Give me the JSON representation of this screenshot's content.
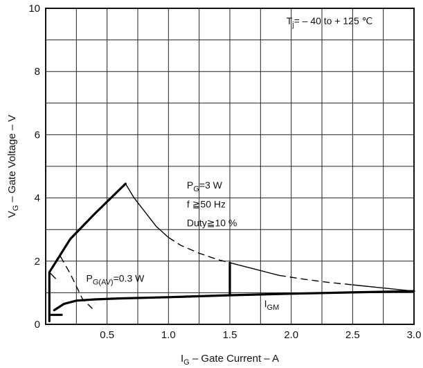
{
  "chart_data": {
    "type": "line",
    "title": "",
    "xlabel": {
      "main": "I",
      "sub": "G",
      "rest": " – Gate Current – A"
    },
    "ylabel": {
      "main": "V",
      "sub": "G",
      "rest": " – Gate Voltage – V"
    },
    "xlim": [
      0,
      3.0
    ],
    "ylim": [
      0,
      10
    ],
    "x_grid_step": 0.25,
    "y_grid_step": 1,
    "grid": true,
    "x_ticks": [
      {
        "value": 0.5,
        "label": "0.5"
      },
      {
        "value": 1.0,
        "label": "1.0"
      },
      {
        "value": 1.5,
        "label": "1.5"
      },
      {
        "value": 2.0,
        "label": "2.0"
      },
      {
        "value": 2.5,
        "label": "2.5"
      },
      {
        "value": 3.0,
        "label": "3.0"
      }
    ],
    "y_ticks": [
      {
        "value": 0,
        "label": "0"
      },
      {
        "value": 2,
        "label": "2"
      },
      {
        "value": 4,
        "label": "4"
      },
      {
        "value": 6,
        "label": "6"
      },
      {
        "value": 8,
        "label": "8"
      },
      {
        "value": 10,
        "label": "10"
      }
    ],
    "curves": [
      {
        "style": "thick",
        "points": [
          [
            0.03,
            0.1
          ],
          [
            0.03,
            1.65
          ],
          [
            0.2,
            2.7
          ],
          [
            0.4,
            3.5
          ],
          [
            0.65,
            4.45
          ]
        ]
      },
      {
        "style": "thin",
        "points": [
          [
            0.65,
            4.45
          ],
          [
            0.72,
            4.0
          ],
          [
            0.8,
            3.6
          ],
          [
            0.9,
            3.1
          ],
          [
            1.0,
            2.75
          ]
        ]
      },
      {
        "style": "dashed",
        "points": [
          [
            1.0,
            2.75
          ],
          [
            1.1,
            2.5
          ],
          [
            1.25,
            2.25
          ],
          [
            1.4,
            2.05
          ],
          [
            1.5,
            1.95
          ]
        ]
      },
      {
        "style": "thin",
        "points": [
          [
            1.5,
            1.95
          ],
          [
            1.7,
            1.75
          ],
          [
            1.9,
            1.55
          ]
        ]
      },
      {
        "style": "dashed",
        "points": [
          [
            1.9,
            1.55
          ],
          [
            2.1,
            1.43
          ],
          [
            2.3,
            1.33
          ],
          [
            2.5,
            1.25
          ]
        ]
      },
      {
        "style": "thin",
        "points": [
          [
            2.5,
            1.25
          ],
          [
            2.75,
            1.15
          ],
          [
            3.0,
            1.05
          ]
        ]
      },
      {
        "style": "thick",
        "points": [
          [
            0.07,
            0.45
          ],
          [
            0.15,
            0.65
          ],
          [
            0.25,
            0.75
          ],
          [
            0.4,
            0.79
          ],
          [
            0.6,
            0.82
          ],
          [
            1.0,
            0.86
          ],
          [
            1.5,
            0.92
          ],
          [
            2.0,
            0.97
          ],
          [
            2.5,
            1.01
          ],
          [
            3.0,
            1.05
          ]
        ]
      },
      {
        "style": "thick",
        "points": [
          [
            1.5,
            0.92
          ],
          [
            1.5,
            1.95
          ]
        ]
      },
      {
        "style": "thin",
        "points": [
          [
            0.03,
            1.65
          ],
          [
            0.08,
            1.45
          ]
        ]
      },
      {
        "style": "dashed",
        "points": [
          [
            0.12,
            2.15
          ],
          [
            0.2,
            1.6
          ],
          [
            0.3,
            0.8
          ],
          [
            0.38,
            0.5
          ]
        ]
      },
      {
        "style": "thick",
        "points": [
          [
            0.03,
            0.3
          ],
          [
            0.13,
            0.3
          ]
        ]
      }
    ],
    "annotations": [
      {
        "name": "tj-annotation",
        "parts": [
          {
            "t": "T"
          },
          {
            "t": "j",
            "sub": true
          },
          {
            "t": "= – 40 to + 125 ℃"
          }
        ],
        "x": 1.96,
        "y": 9.5
      },
      {
        "name": "pg-annotation",
        "parts": [
          {
            "t": "P"
          },
          {
            "t": "G",
            "sub": true
          },
          {
            "t": "=3 W"
          }
        ],
        "x": 1.15,
        "y": 4.3
      },
      {
        "name": "freq-annotation",
        "parts": [
          {
            "t": "f ≧50 Hz"
          }
        ],
        "x": 1.15,
        "y": 3.7
      },
      {
        "name": "duty-annotation",
        "parts": [
          {
            "t": "Duty≧10 %"
          }
        ],
        "x": 1.15,
        "y": 3.1
      },
      {
        "name": "pgav-annotation",
        "parts": [
          {
            "t": "P"
          },
          {
            "t": "G(AV)",
            "sub": true
          },
          {
            "t": "=0.3 W"
          }
        ],
        "x": 0.33,
        "y": 1.35
      },
      {
        "name": "igm-annotation",
        "parts": [
          {
            "t": "I"
          },
          {
            "t": "GM",
            "sub": true
          }
        ],
        "x": 1.78,
        "y": 0.55
      }
    ]
  }
}
